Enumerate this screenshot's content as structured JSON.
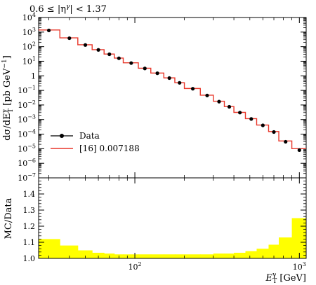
{
  "chart_data": [
    {
      "type": "line",
      "title": "0.6 ≤ |η^γ| < 1.37",
      "title_parts": {
        "prefix": "0.6 ≤ |η",
        "sup": "γ",
        "suffix": "| < 1.37"
      },
      "xscale": "log",
      "yscale": "log",
      "xlim": [
        26,
        1100
      ],
      "ylim": [
        1e-07,
        10000.0
      ],
      "ylabel_parts": {
        "main": "dσ/dE",
        "sup": "γ",
        "sub": "T",
        "unit": "[pb GeV",
        "unit_sup": "−1",
        "unit_end": "]"
      },
      "yticks": [
        {
          "value": 10000.0,
          "base": "10",
          "exp": "4"
        },
        {
          "value": 1000.0,
          "base": "10",
          "exp": "3"
        },
        {
          "value": 100.0,
          "base": "10",
          "exp": "2"
        },
        {
          "value": 10.0,
          "base": "10",
          "exp": "1"
        },
        {
          "value": 1,
          "base": "1",
          "exp": ""
        },
        {
          "value": 0.1,
          "base": "10",
          "exp": "−1"
        },
        {
          "value": 0.01,
          "base": "10",
          "exp": "−2"
        },
        {
          "value": 0.001,
          "base": "10",
          "exp": "−3"
        },
        {
          "value": 0.0001,
          "base": "10",
          "exp": "−4"
        },
        {
          "value": 1e-05,
          "base": "10",
          "exp": "−5"
        },
        {
          "value": 1e-06,
          "base": "10",
          "exp": "−6"
        },
        {
          "value": 1e-07,
          "base": "10",
          "exp": "−7"
        }
      ],
      "legend_position": "bottom-left",
      "series": [
        {
          "name": "Data",
          "style": "points",
          "color": "#000000"
        },
        {
          "name": "[16] 0.007188",
          "style": "histogram",
          "color": "#e8372a"
        }
      ],
      "bin_edges": [
        26,
        35,
        45,
        55,
        65,
        75,
        85,
        105,
        125,
        150,
        175,
        200,
        250,
        300,
        350,
        400,
        470,
        550,
        650,
        750,
        900,
        1100
      ],
      "data_points": [
        {
          "x": 30,
          "y": 1300
        },
        {
          "x": 40,
          "y": 380
        },
        {
          "x": 50,
          "y": 130
        },
        {
          "x": 60,
          "y": 60
        },
        {
          "x": 70,
          "y": 30
        },
        {
          "x": 80,
          "y": 16
        },
        {
          "x": 95,
          "y": 7.5
        },
        {
          "x": 115,
          "y": 3.2
        },
        {
          "x": 137,
          "y": 1.5
        },
        {
          "x": 162,
          "y": 0.7
        },
        {
          "x": 187,
          "y": 0.33
        },
        {
          "x": 225,
          "y": 0.13
        },
        {
          "x": 275,
          "y": 0.045
        },
        {
          "x": 325,
          "y": 0.017
        },
        {
          "x": 375,
          "y": 0.0075
        },
        {
          "x": 435,
          "y": 0.003
        },
        {
          "x": 510,
          "y": 0.0011
        },
        {
          "x": 600,
          "y": 0.0004
        },
        {
          "x": 700,
          "y": 0.00014
        },
        {
          "x": 825,
          "y": 3e-05
        },
        {
          "x": 1000,
          "y": 8e-06
        }
      ],
      "mc_values": [
        1400,
        400,
        135,
        62,
        31,
        16.5,
        7.8,
        3.3,
        1.55,
        0.72,
        0.34,
        0.135,
        0.047,
        0.018,
        0.0078,
        0.0031,
        0.00115,
        0.00042,
        0.00015,
        3.4e-05,
        1e-05
      ]
    },
    {
      "type": "area",
      "ylabel": "MC/Data",
      "xlabel_parts": {
        "main": "E",
        "sup": "γ",
        "sub": "T",
        "unit": "[GeV]"
      },
      "xscale": "log",
      "xlim": [
        26,
        1100
      ],
      "ylim": [
        1.0,
        1.5
      ],
      "yticks": [
        "1.0",
        "1.1",
        "1.2",
        "1.3",
        "1.4"
      ],
      "xticks": [
        {
          "value": 100,
          "base": "10",
          "exp": "2"
        },
        {
          "value": 1000,
          "base": "10",
          "exp": "3"
        }
      ],
      "band_color": "#ffff00",
      "bin_edges": [
        26,
        35,
        45,
        55,
        65,
        75,
        85,
        105,
        125,
        150,
        175,
        200,
        250,
        300,
        350,
        400,
        470,
        550,
        650,
        750,
        900,
        1100
      ],
      "band_upper": [
        1.12,
        1.08,
        1.05,
        1.035,
        1.03,
        1.025,
        1.025,
        1.025,
        1.025,
        1.025,
        1.025,
        1.025,
        1.025,
        1.03,
        1.03,
        1.035,
        1.045,
        1.06,
        1.085,
        1.13,
        1.25
      ]
    }
  ]
}
